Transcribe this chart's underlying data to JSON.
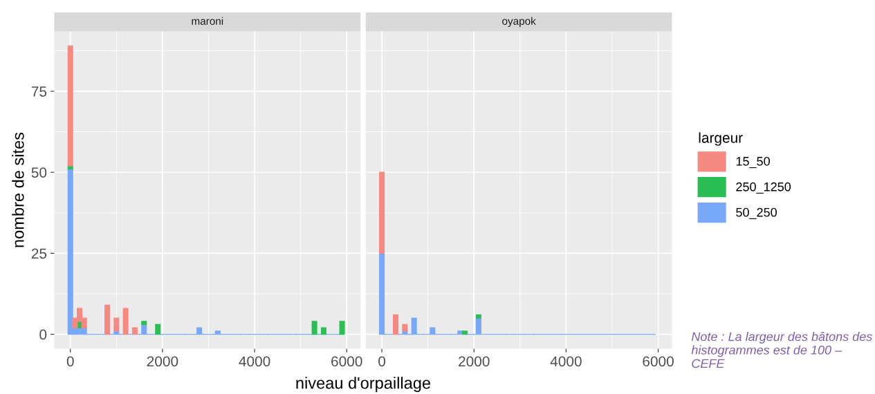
{
  "chart_data": [
    {
      "type": "bar",
      "title": "maroni",
      "xlabel": "niveau d'orpaillage",
      "ylabel": "nombre de sites",
      "stacked": true,
      "grid": true,
      "legend": "right",
      "legend_title": "largeur",
      "x": [
        0,
        100,
        200,
        300,
        400,
        500,
        600,
        700,
        800,
        900,
        1000,
        1100,
        1200,
        1300,
        1400,
        1500,
        1600,
        1700,
        1800,
        1900,
        2000,
        2100,
        2200,
        2300,
        2400,
        2500,
        2600,
        2700,
        2800,
        2900,
        3000,
        3100,
        3200,
        3300,
        3400,
        3500,
        3600,
        3700,
        3800,
        3900,
        4000,
        4100,
        4200,
        4300,
        4400,
        4500,
        4600,
        4700,
        4800,
        4900,
        5000,
        5100,
        5200,
        5300,
        5400,
        5500,
        5600,
        5700,
        5800,
        5900
      ],
      "xlim": [
        -350,
        6300
      ],
      "xticks": [
        0,
        2000,
        4000,
        6000
      ],
      "ylim": [
        -4.45,
        93.45
      ],
      "yticks": [
        0,
        25,
        50,
        75
      ],
      "series": [
        {
          "name": "50_250",
          "color": "#78a8fa",
          "values": [
            51,
            2,
            2,
            2,
            0,
            0,
            0,
            0,
            0,
            0,
            1,
            0,
            0,
            0,
            0,
            0,
            3,
            0,
            0,
            0,
            0,
            0,
            0,
            0,
            0,
            0,
            0,
            0,
            2,
            0,
            0,
            0,
            1,
            0,
            0,
            0,
            0,
            0,
            0,
            0,
            0,
            0,
            0,
            0,
            0,
            0,
            0,
            0,
            0,
            0,
            0,
            0,
            0,
            0,
            0,
            0,
            0,
            0,
            0,
            0
          ]
        },
        {
          "name": "250_1250",
          "color": "#2bbe54",
          "values": [
            1,
            0,
            2,
            0,
            0,
            0,
            0,
            0,
            0,
            0,
            0,
            0,
            0,
            0,
            0,
            0,
            1,
            0,
            0,
            3,
            0,
            0,
            0,
            0,
            0,
            0,
            0,
            0,
            0,
            0,
            0,
            0,
            0,
            0,
            0,
            0,
            0,
            0,
            0,
            0,
            0,
            0,
            0,
            0,
            0,
            0,
            0,
            0,
            0,
            0,
            0,
            0,
            0,
            4,
            0,
            2,
            0,
            0,
            0,
            4
          ]
        },
        {
          "name": "15_50",
          "color": "#f68a83",
          "values": [
            37,
            3,
            4,
            3,
            0,
            0,
            0,
            0,
            9,
            0,
            4,
            0,
            8,
            0,
            2,
            0,
            0,
            0,
            0,
            0,
            0,
            0,
            0,
            0,
            0,
            0,
            0,
            0,
            0,
            0,
            0,
            0,
            0,
            0,
            0,
            0,
            0,
            0,
            0,
            0,
            0,
            0,
            0,
            0,
            0,
            0,
            0,
            0,
            0,
            0,
            0,
            0,
            0,
            0,
            0,
            0,
            0,
            0,
            0,
            0
          ]
        }
      ]
    },
    {
      "type": "bar",
      "title": "oyapok",
      "stacked": true,
      "grid": true,
      "tick_labels": "x",
      "x": [
        0,
        100,
        200,
        300,
        400,
        500,
        600,
        700,
        800,
        900,
        1000,
        1100,
        1200,
        1300,
        1400,
        1500,
        1600,
        1700,
        1800,
        1900,
        2000,
        2100,
        2200,
        2300,
        2400,
        2500,
        2600,
        2700,
        2800,
        2900,
        3000,
        3100,
        3200,
        3300,
        3400,
        3500,
        3600,
        3700,
        3800,
        3900,
        4000,
        4100,
        4200,
        4300,
        4400,
        4500,
        4600,
        4700,
        4800,
        4900,
        5000,
        5100,
        5200,
        5300,
        5400,
        5500,
        5600,
        5700,
        5800,
        5900
      ],
      "xlim": [
        -350,
        6300
      ],
      "xticks": [
        0,
        2000,
        4000,
        6000
      ],
      "ylim": [
        -4.45,
        93.45
      ],
      "yticks": [
        0,
        25,
        50,
        75
      ],
      "annotations": [
        "Note : La largeur des bâtons des histogrammes est de 100 – CEFE"
      ],
      "series": [
        {
          "color": "#78a8fa",
          "values": [
            25,
            0,
            0,
            0,
            0,
            1,
            0,
            5,
            0,
            0,
            0,
            2,
            0,
            0,
            0,
            0,
            0,
            1,
            0,
            0,
            0,
            5,
            0,
            0,
            0,
            0,
            0,
            0,
            0,
            0,
            0,
            0,
            0,
            0,
            0,
            0,
            0,
            0,
            0,
            0,
            0,
            0,
            0,
            0,
            0,
            0,
            0,
            0,
            0,
            0,
            0,
            0,
            0,
            0,
            0,
            0,
            0,
            0,
            0,
            0
          ]
        },
        {
          "color": "#2bbe54",
          "values": [
            0,
            0,
            0,
            0,
            0,
            0,
            0,
            0,
            0,
            0,
            0,
            0,
            0,
            0,
            0,
            0,
            0,
            0,
            1,
            0,
            0,
            1,
            0,
            0,
            0,
            0,
            0,
            0,
            0,
            0,
            0,
            0,
            0,
            0,
            0,
            0,
            0,
            0,
            0,
            0,
            0,
            0,
            0,
            0,
            0,
            0,
            0,
            0,
            0,
            0,
            0,
            0,
            0,
            0,
            0,
            0,
            0,
            0,
            0,
            0
          ]
        },
        {
          "color": "#f68a83",
          "values": [
            25,
            0,
            0,
            6,
            0,
            2,
            0,
            0,
            0,
            0,
            0,
            0,
            0,
            0,
            0,
            0,
            0,
            0,
            0,
            0,
            0,
            0,
            0,
            0,
            0,
            0,
            0,
            0,
            0,
            0,
            0,
            0,
            0,
            0,
            0,
            0,
            0,
            0,
            0,
            0,
            0,
            0,
            0,
            0,
            0,
            0,
            0,
            0,
            0,
            0,
            0,
            0,
            0,
            0,
            0,
            0,
            0,
            0,
            0,
            0
          ]
        }
      ]
    }
  ]
}
